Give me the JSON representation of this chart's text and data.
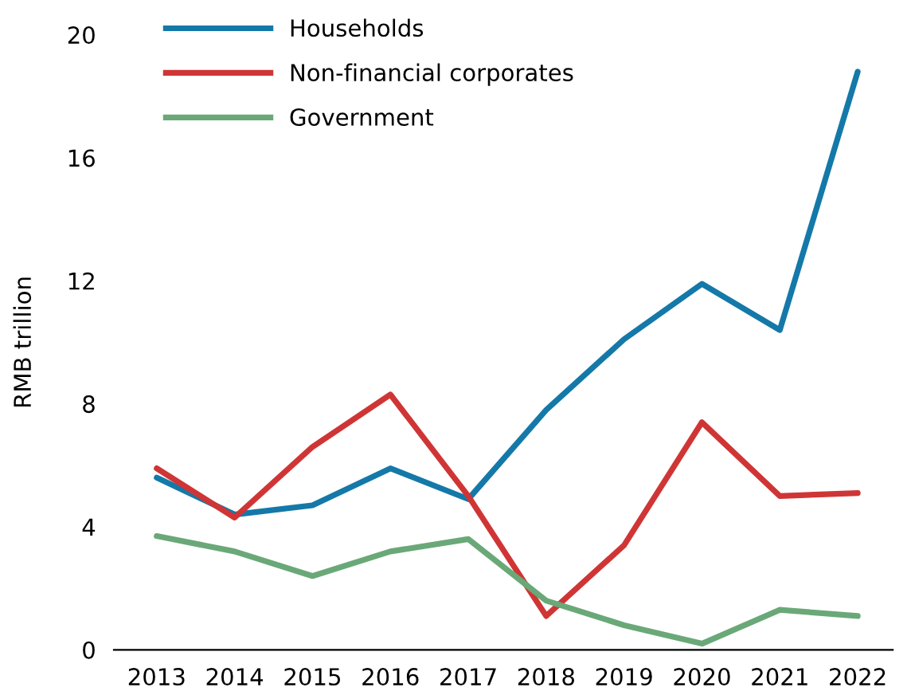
{
  "chart_data": {
    "type": "line",
    "ylabel": "RMB trillion",
    "categories": [
      "2013",
      "2014",
      "2015",
      "2016",
      "2017",
      "2018",
      "2019",
      "2020",
      "2021",
      "2022"
    ],
    "series": [
      {
        "name": "Households",
        "color": "#1479a8",
        "values": [
          5.6,
          4.4,
          4.7,
          5.9,
          4.9,
          7.8,
          10.1,
          11.9,
          10.4,
          18.8
        ]
      },
      {
        "name": "Non-financial corporates",
        "color": "#d03535",
        "values": [
          5.9,
          4.3,
          6.6,
          8.3,
          5.0,
          1.1,
          3.4,
          7.4,
          5.0,
          5.1
        ]
      },
      {
        "name": "Government",
        "color": "#6aa878",
        "values": [
          3.7,
          3.2,
          2.4,
          3.2,
          3.6,
          1.6,
          0.8,
          0.2,
          1.3,
          1.1
        ]
      }
    ],
    "ylim": [
      0,
      20
    ],
    "yticks": [
      0,
      4,
      8,
      12,
      16,
      20
    ],
    "grid": false,
    "legend": "top left",
    "line_style": "solid",
    "marker": "none"
  }
}
